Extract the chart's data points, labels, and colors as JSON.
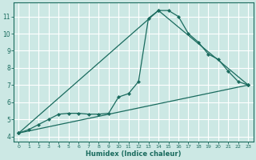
{
  "xlabel": "Humidex (Indice chaleur)",
  "background_color": "#cce8e4",
  "grid_color": "#ffffff",
  "line_color": "#1a6b5e",
  "xlim": [
    -0.5,
    23.5
  ],
  "ylim": [
    3.7,
    11.8
  ],
  "curve1_x": [
    0,
    1,
    2,
    3,
    4,
    5,
    6,
    7,
    8,
    9,
    10,
    11,
    12,
    13,
    14,
    15,
    16,
    17,
    18,
    19,
    20,
    21,
    22,
    23
  ],
  "curve1_y": [
    4.2,
    4.4,
    4.7,
    5.0,
    5.3,
    5.35,
    5.35,
    5.3,
    5.3,
    5.35,
    6.3,
    6.5,
    7.2,
    10.9,
    11.35,
    11.35,
    11.0,
    10.0,
    9.5,
    8.8,
    8.5,
    7.8,
    7.2,
    7.0
  ],
  "curve2_x": [
    0,
    14,
    23
  ],
  "curve2_y": [
    4.2,
    11.35,
    7.0
  ],
  "curve3_x": [
    0,
    23
  ],
  "curve3_y": [
    4.2,
    7.0
  ]
}
